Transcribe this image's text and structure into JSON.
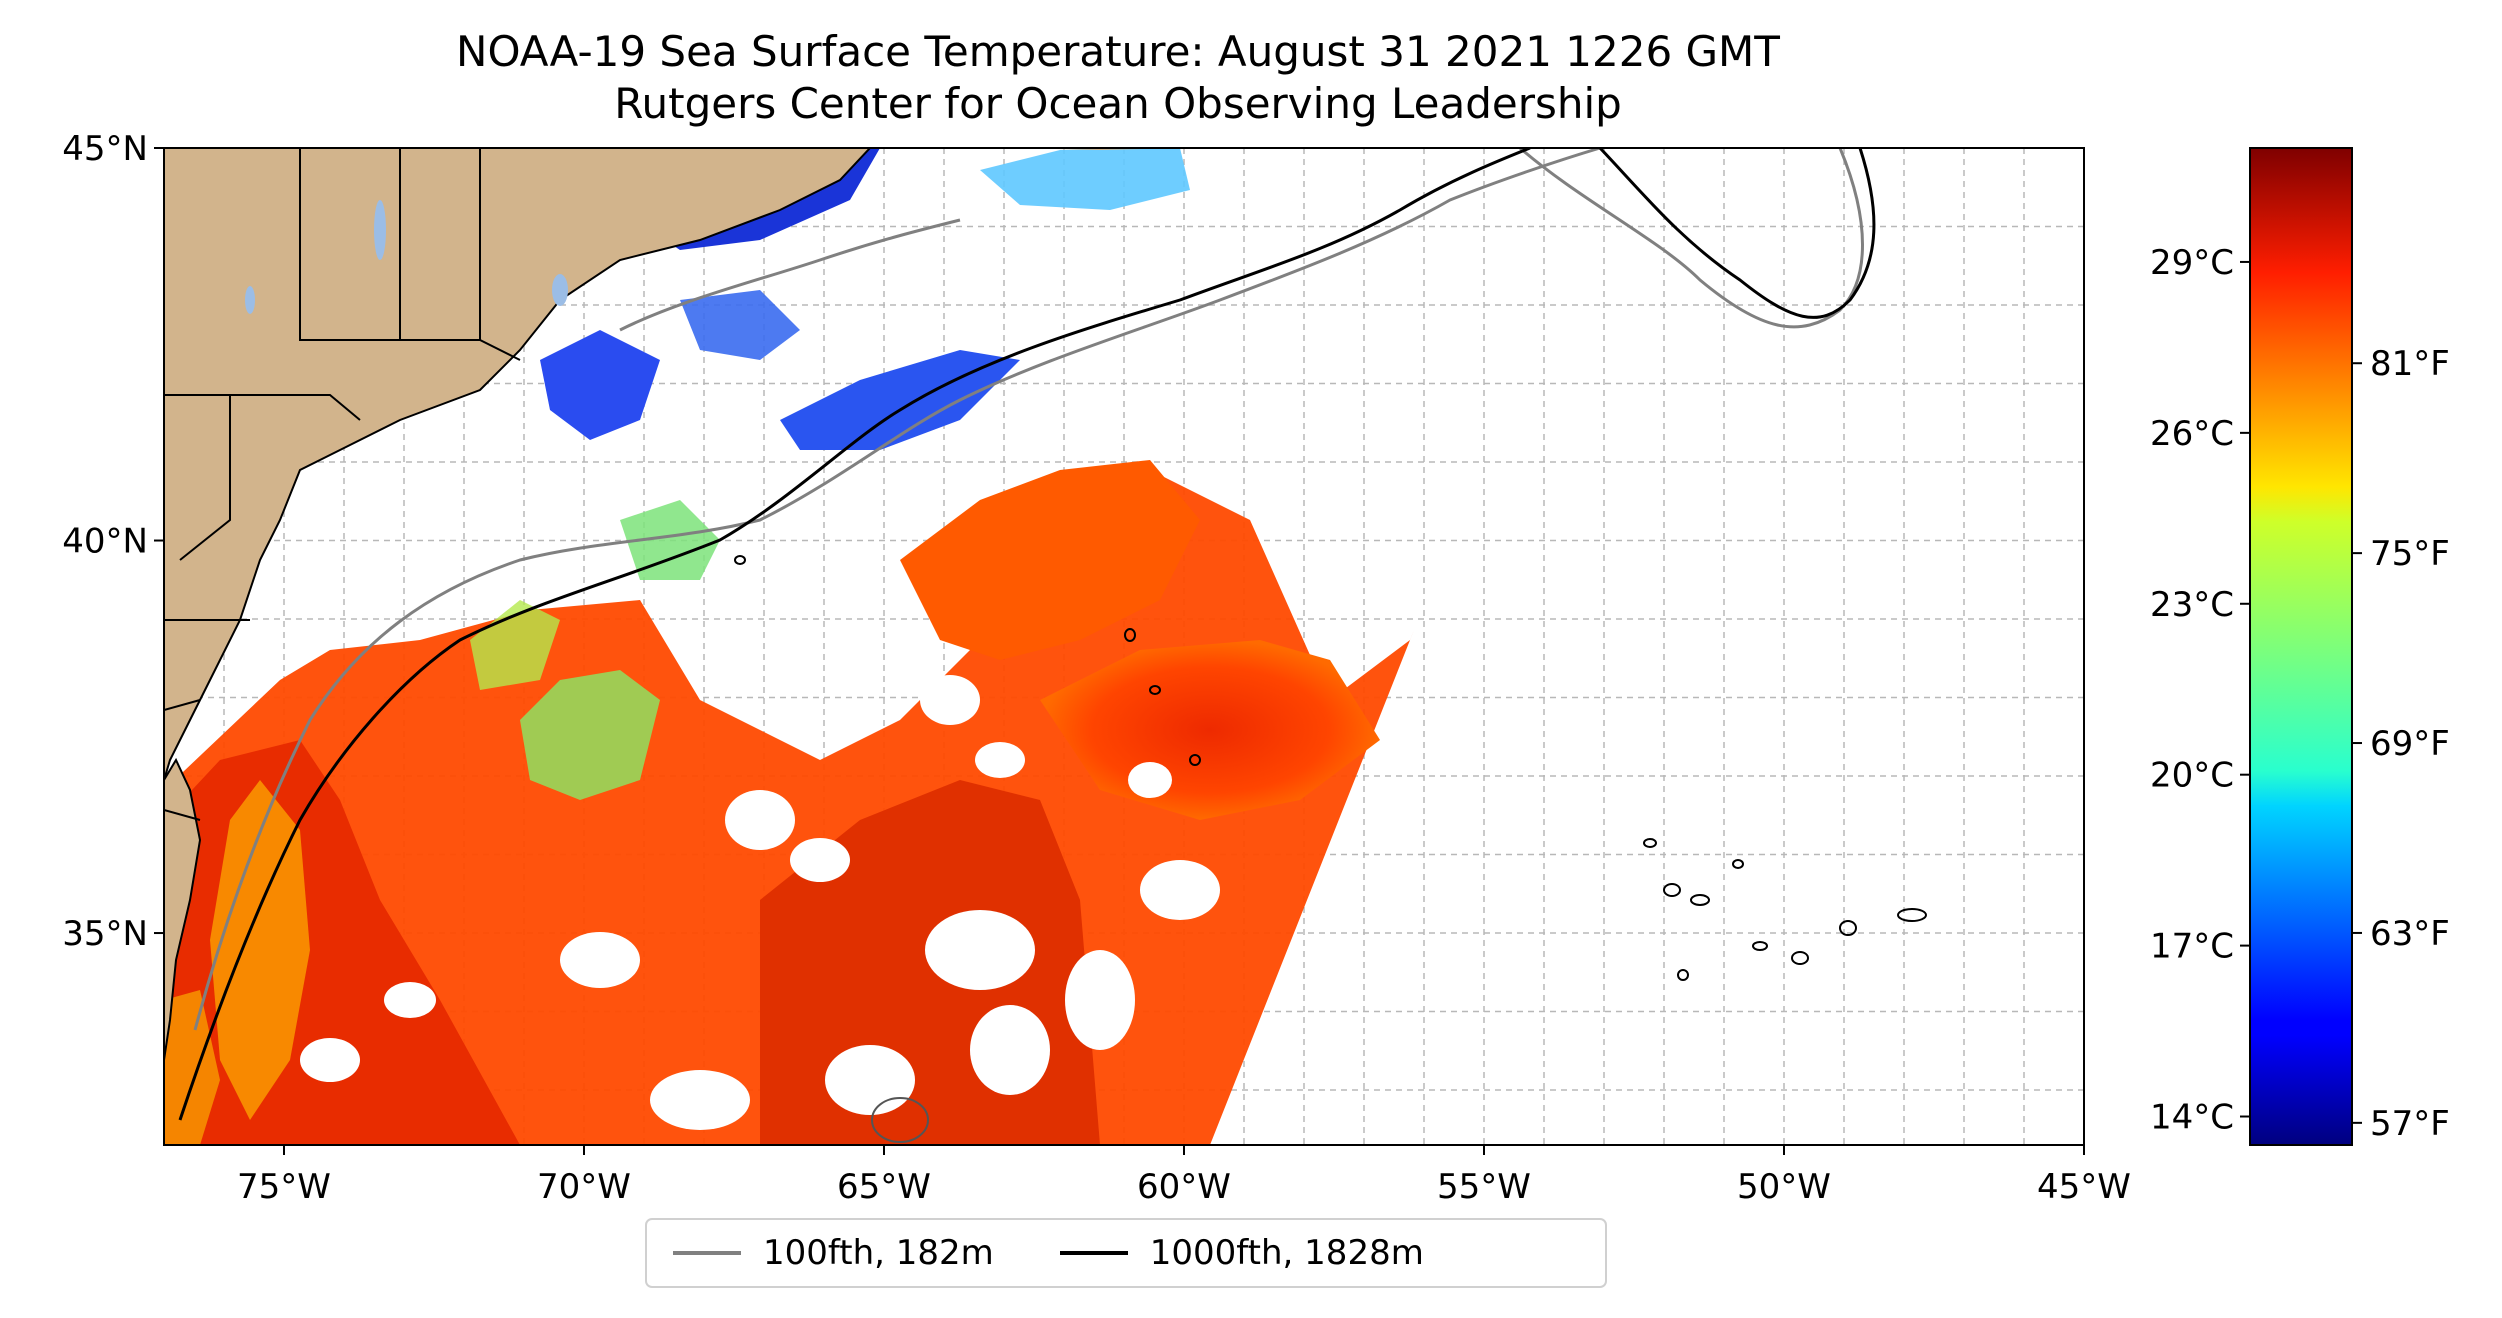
{
  "title": {
    "line1": "NOAA-19 Sea Surface Temperature: August 31 2021 1226 GMT",
    "line2": "Rutgers Center for Ocean Observing Leadership"
  },
  "map": {
    "extent": {
      "lon": [
        -77,
        -45
      ],
      "lat": [
        32.3,
        45
      ]
    },
    "lon_ticks": [
      {
        "value": -75,
        "label": "75°W"
      },
      {
        "value": -70,
        "label": "70°W"
      },
      {
        "value": -65,
        "label": "65°W"
      },
      {
        "value": -60,
        "label": "60°W"
      },
      {
        "value": -55,
        "label": "55°W"
      },
      {
        "value": -50,
        "label": "50°W"
      },
      {
        "value": -45,
        "label": "45°W"
      }
    ],
    "lat_ticks": [
      {
        "value": 35,
        "label": "35°N"
      },
      {
        "value": 40,
        "label": "40°N"
      },
      {
        "value": 45,
        "label": "45°N"
      }
    ],
    "gridlines": "dashed, every 1°",
    "colors": {
      "land": "#d2b48c",
      "lakes": "#9bbde6",
      "ocean_no_data": "#ffffff",
      "isobath_100fth": "#808080",
      "isobath_1000fth": "#000000"
    }
  },
  "colorbar": {
    "colormap": "jet",
    "range_c": [
      13.5,
      31.0
    ],
    "celsius_ticks": [
      {
        "value": 14,
        "label": "14°C"
      },
      {
        "value": 17,
        "label": "17°C"
      },
      {
        "value": 20,
        "label": "20°C"
      },
      {
        "value": 23,
        "label": "23°C"
      },
      {
        "value": 26,
        "label": "26°C"
      },
      {
        "value": 29,
        "label": "29°C"
      }
    ],
    "fahrenheit_ticks": [
      {
        "value": 57,
        "label": "57°F"
      },
      {
        "value": 63,
        "label": "63°F"
      },
      {
        "value": 69,
        "label": "69°F"
      },
      {
        "value": 75,
        "label": "75°F"
      },
      {
        "value": 81,
        "label": "81°F"
      }
    ]
  },
  "legend": {
    "items": [
      {
        "label": "100fth, 182m",
        "color": "#808080"
      },
      {
        "label": "1000fth, 1828m",
        "color": "#000000"
      }
    ]
  }
}
